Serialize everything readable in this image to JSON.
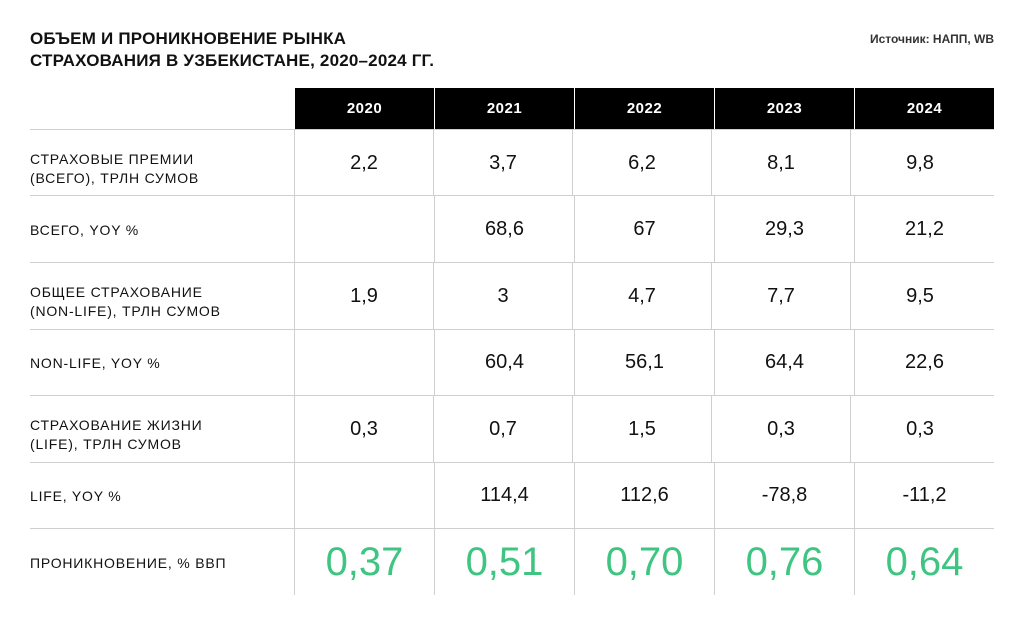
{
  "title": {
    "line1": "ОБЪЕМ И ПРОНИКНОВЕНИЕ РЫНКА",
    "line2": "СТРАХОВАНИЯ В УЗБЕКИСТАНЕ, 2020–2024 ГГ."
  },
  "source": "Источник: НАПП, WB",
  "colors": {
    "header_bg": "#000000",
    "accent_green": "#3fc481",
    "grid": "#cfcfcf"
  },
  "chart_data": {
    "type": "table",
    "title": "ОБЪЕМ И ПРОНИКНОВЕНИЕ РЫНКА СТРАХОВАНИЯ В УЗБЕКИСТАНЕ, 2020–2024 ГГ.",
    "columns": [
      "2020",
      "2021",
      "2022",
      "2023",
      "2024"
    ],
    "rows": [
      {
        "label_lines": [
          "СТРАХОВЫЕ ПРЕМИИ",
          "(ВСЕГО), ТРЛН СУМОВ"
        ],
        "values": [
          "2,2",
          "3,7",
          "6,2",
          "8,1",
          "9,8"
        ]
      },
      {
        "label_lines": [
          "ВСЕГО, YOY %"
        ],
        "values": [
          "",
          "68,6",
          "67",
          "29,3",
          "21,2"
        ]
      },
      {
        "label_lines": [
          "ОБЩЕЕ СТРАХОВАНИЕ",
          "(NON-LIFE), ТРЛН СУМОВ"
        ],
        "values": [
          "1,9",
          "3",
          "4,7",
          "7,7",
          "9,5"
        ]
      },
      {
        "label_lines": [
          "NON-LIFE, YOY %"
        ],
        "values": [
          "",
          "60,4",
          "56,1",
          "64,4",
          "22,6"
        ]
      },
      {
        "label_lines": [
          "СТРАХОВАНИЕ ЖИЗНИ",
          "(LIFE), ТРЛН СУМОВ"
        ],
        "values": [
          "0,3",
          "0,7",
          "1,5",
          "0,3",
          "0,3"
        ]
      },
      {
        "label_lines": [
          "LIFE, YOY %"
        ],
        "values": [
          "",
          "114,4",
          "112,6",
          "-78,8",
          "-11,2"
        ]
      },
      {
        "label_lines": [
          "ПРОНИКНОВЕНИЕ, % ВВП"
        ],
        "values": [
          "0,37",
          "0,51",
          "0,70",
          "0,76",
          "0,64"
        ]
      }
    ]
  }
}
